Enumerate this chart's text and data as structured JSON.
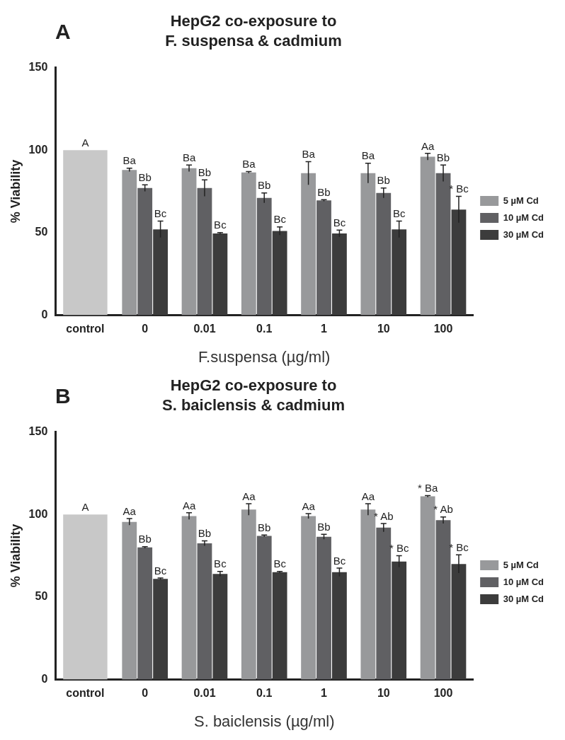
{
  "chart_data": [
    {
      "type": "bar",
      "title": "HepG2 co-exposure to\nF. suspensa & cadmium",
      "xlabel": "F.suspensa (µg/ml)",
      "ylabel": "% Viability",
      "annotations": [
        "A"
      ],
      "categories": [
        "control",
        "0",
        "0.01",
        "0.1",
        "1",
        "10",
        "100"
      ],
      "ylim": [
        0,
        150
      ],
      "yticks": [
        0,
        50,
        100,
        150
      ],
      "grid": false,
      "legend": "right",
      "series": [
        {
          "color": "#c8c8c8",
          "values": [
            100,
            null,
            null,
            null,
            null,
            null,
            null
          ],
          "value_labels": [
            "A",
            null,
            null,
            null,
            null,
            null,
            null
          ]
        },
        {
          "name": "5 µM Cd",
          "color": "#98999b",
          "values": [
            null,
            88,
            89,
            86.5,
            86,
            86,
            96
          ],
          "errors": [
            null,
            1,
            2,
            0.5,
            7,
            6,
            2
          ],
          "value_labels": [
            null,
            "Ba",
            "Ba",
            "Ba",
            "Ba",
            "Ba",
            "Aa"
          ]
        },
        {
          "name": "10 µM Cd",
          "color": "#606063",
          "values": [
            null,
            77,
            77,
            71,
            69.5,
            74,
            86
          ],
          "errors": [
            null,
            2,
            5,
            3,
            0.5,
            3,
            5
          ],
          "value_labels": [
            null,
            "Bb",
            "Bb",
            "Bb",
            "Bb",
            "Bb",
            "Bb"
          ]
        },
        {
          "name": "30 µM Cd",
          "color": "#3c3c3c",
          "values": [
            null,
            52,
            49.5,
            51,
            49.5,
            52,
            64
          ],
          "errors": [
            null,
            5,
            0.5,
            2.5,
            2,
            5,
            8
          ],
          "value_labels": [
            null,
            "Bc",
            "Bc",
            "Bc",
            "Bc",
            "Bc",
            "* Bc"
          ]
        }
      ]
    },
    {
      "type": "bar",
      "title": "HepG2 co-exposure to\nS. baiclensis & cadmium",
      "xlabel": "S. baiclensis (µg/ml)",
      "ylabel": "% Viability",
      "annotations": [
        "B"
      ],
      "categories": [
        "control",
        "0",
        "0.01",
        "0.1",
        "1",
        "10",
        "100"
      ],
      "ylim": [
        0,
        150
      ],
      "yticks": [
        0,
        50,
        100,
        150
      ],
      "grid": false,
      "legend": "right",
      "series": [
        {
          "color": "#c8c8c8",
          "values": [
            100,
            null,
            null,
            null,
            null,
            null,
            null
          ],
          "value_labels": [
            "A",
            null,
            null,
            null,
            null,
            null,
            null
          ]
        },
        {
          "name": "5 µM Cd",
          "color": "#98999b",
          "values": [
            null,
            95.5,
            99,
            103,
            99,
            103,
            111
          ],
          "errors": [
            null,
            2,
            2,
            3.5,
            1.5,
            3.5,
            0.5
          ],
          "value_labels": [
            null,
            "Aa",
            "Aa",
            "Aa",
            "Aa",
            "Aa",
            "* Ba"
          ]
        },
        {
          "name": "10 µM Cd",
          "color": "#606063",
          "values": [
            null,
            80,
            82.5,
            87,
            86.5,
            92,
            96.5
          ],
          "errors": [
            null,
            0.5,
            1.5,
            0.5,
            1.5,
            2.5,
            2
          ],
          "value_labels": [
            null,
            "Bb",
            "Bb",
            "Bb",
            "Bb",
            "* Ab",
            "* Ab"
          ]
        },
        {
          "name": "30 µM Cd",
          "color": "#3c3c3c",
          "values": [
            null,
            61,
            64,
            65,
            65,
            71.5,
            70
          ],
          "errors": [
            null,
            0.5,
            1.5,
            0.5,
            2.5,
            3.5,
            5.5
          ],
          "value_labels": [
            null,
            "Bc",
            "Bc",
            "Bc",
            "Bc",
            "* Bc",
            "* Bc"
          ]
        }
      ]
    }
  ]
}
